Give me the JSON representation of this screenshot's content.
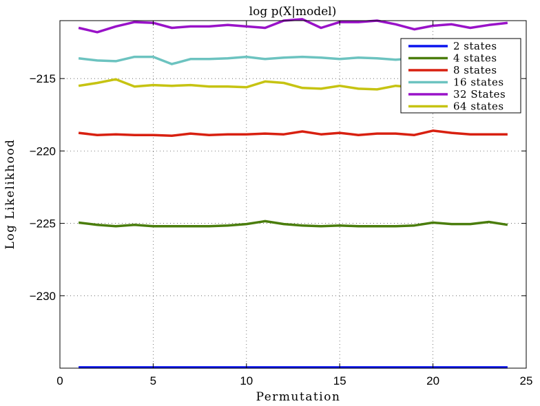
{
  "chart_data": {
    "type": "line",
    "title": "log p(X|model)",
    "xlabel": "Permutation",
    "ylabel": "Log Likelikhood",
    "xlim": [
      0,
      25
    ],
    "ylim": [
      -235,
      -211
    ],
    "xticks": [
      0,
      5,
      10,
      15,
      20,
      25
    ],
    "yticks": [
      -215,
      -220,
      -225,
      -230
    ],
    "grid": true,
    "legend_position": "top-right",
    "x": [
      1,
      2,
      3,
      4,
      5,
      6,
      7,
      8,
      9,
      10,
      11,
      12,
      13,
      14,
      15,
      16,
      17,
      18,
      19,
      20,
      21,
      22,
      23,
      24
    ],
    "series": [
      {
        "name": "2 states",
        "color": "#0a14ee",
        "values": [
          -234.95,
          -234.95,
          -234.95,
          -234.95,
          -234.95,
          -234.95,
          -234.95,
          -234.95,
          -234.95,
          -234.95,
          -234.95,
          -234.95,
          -234.95,
          -234.95,
          -234.95,
          -234.95,
          -234.95,
          -234.95,
          -234.95,
          -234.95,
          -234.95,
          -234.95,
          -234.95,
          -234.95
        ]
      },
      {
        "name": "4 states",
        "color": "#4a7d0c",
        "values": [
          -224.95,
          -225.1,
          -225.2,
          -225.1,
          -225.2,
          -225.2,
          -225.2,
          -225.2,
          -225.15,
          -225.05,
          -224.85,
          -225.05,
          -225.15,
          -225.2,
          -225.15,
          -225.2,
          -225.2,
          -225.2,
          -225.15,
          -224.95,
          -225.05,
          -225.05,
          -224.9,
          -225.1
        ]
      },
      {
        "name": "8 states",
        "color": "#d82010",
        "values": [
          -218.75,
          -218.9,
          -218.85,
          -218.9,
          -218.9,
          -218.95,
          -218.8,
          -218.9,
          -218.85,
          -218.85,
          -218.8,
          -218.85,
          -218.65,
          -218.85,
          -218.75,
          -218.9,
          -218.8,
          -218.8,
          -218.9,
          -218.6,
          -218.75,
          -218.85,
          -218.85,
          -218.85
        ]
      },
      {
        "name": "16 states",
        "color": "#6cc3c0",
        "values": [
          -213.6,
          -213.75,
          -213.8,
          -213.5,
          -213.5,
          -214.0,
          -213.65,
          -213.65,
          -213.6,
          -213.5,
          -213.65,
          -213.55,
          -213.5,
          -213.55,
          -213.65,
          -213.55,
          -213.6,
          -213.7,
          -213.6,
          -213.6,
          -213.6,
          -213.6,
          -213.6,
          -213.6
        ]
      },
      {
        "name": "32 States",
        "color": "#9912c8",
        "values": [
          -211.5,
          -211.8,
          -211.4,
          -211.1,
          -211.15,
          -211.5,
          -211.4,
          -211.4,
          -211.3,
          -211.4,
          -211.5,
          -211.0,
          -210.9,
          -211.5,
          -211.1,
          -211.1,
          -211.0,
          -211.25,
          -211.6,
          -211.35,
          -211.25,
          -211.5,
          -211.3,
          -211.15
        ]
      },
      {
        "name": "64 states",
        "color": "#c6c312",
        "values": [
          -215.5,
          -215.3,
          -215.05,
          -215.55,
          -215.45,
          -215.5,
          -215.45,
          -215.55,
          -215.55,
          -215.6,
          -215.2,
          -215.3,
          -215.65,
          -215.7,
          -215.5,
          -215.7,
          -215.75,
          -215.5,
          -215.6,
          -215.6,
          -215.6,
          -215.6,
          -215.6,
          -215.6
        ]
      }
    ]
  }
}
